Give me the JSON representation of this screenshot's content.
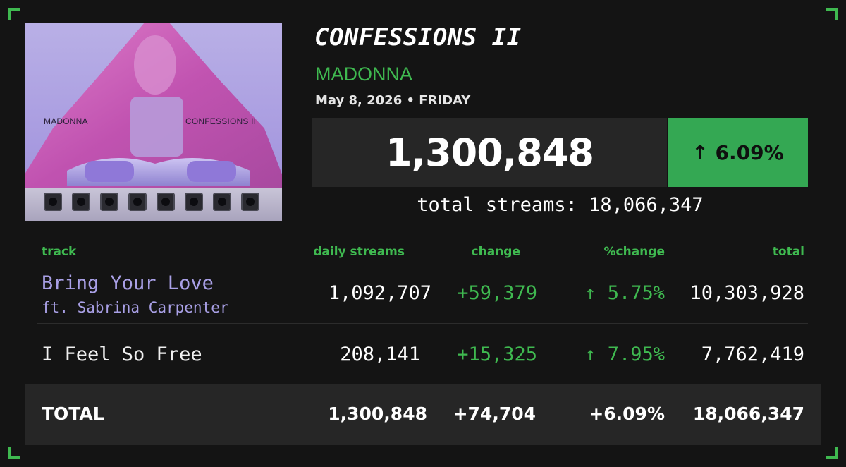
{
  "album": {
    "title": "CONFESSIONS II",
    "artist": "MADONNA",
    "date": "May 8, 2026 • FRIDAY",
    "cover_artist_text": "MADONNA",
    "cover_album_text": "CONFESSIONS II"
  },
  "summary": {
    "daily_streams": "1,300,848",
    "pct_change": "↑ 6.09%",
    "total_streams_label": "total streams: 18,066,347"
  },
  "table": {
    "headers": {
      "track": "track",
      "daily": "daily streams",
      "change": "change",
      "pct": "%change",
      "total": "total"
    },
    "rows": [
      {
        "track": "Bring Your Love",
        "feature": "ft. Sabrina Carpenter",
        "daily": "1,092,707",
        "change": "+59,379",
        "pct": "↑ 5.75%",
        "total": "10,303,928"
      },
      {
        "track": "I Feel So Free",
        "daily": "208,141",
        "change": "+15,325",
        "pct": "↑ 7.95%",
        "total": "7,762,419"
      }
    ],
    "total_row": {
      "label": "TOTAL",
      "daily": "1,300,848",
      "change": "+74,704",
      "pct": "+6.09%",
      "total": "18,066,347"
    }
  },
  "colors": {
    "background": "#141414",
    "accent_green": "#3fb950",
    "pct_box": "#34a853",
    "track_purple": "#a9a0e6",
    "panel": "#262626"
  }
}
